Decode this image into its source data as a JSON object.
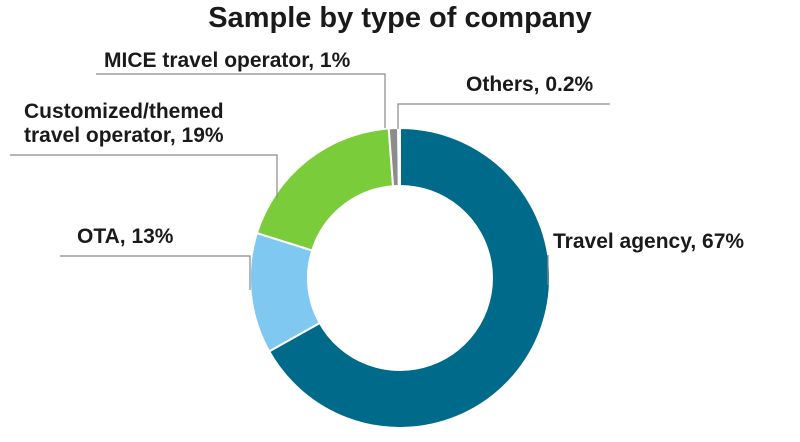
{
  "chart_data": {
    "type": "pie",
    "style": "donut",
    "title": "Sample by type of company",
    "slices": [
      {
        "label": "Travel agency",
        "value": 67,
        "value_label": "67%",
        "color": "#006a8a"
      },
      {
        "label": "OTA",
        "value": 13,
        "value_label": "13%",
        "color": "#7ec8f2"
      },
      {
        "label": "Customized/themed travel operator",
        "value": 19,
        "value_label": "19%",
        "color": "#7acc3a"
      },
      {
        "label": "MICE travel operator",
        "value": 1,
        "value_label": "1%",
        "color": "#8c8c8c"
      },
      {
        "label": "Others",
        "value": 0.2,
        "value_label": "0.2%",
        "color": "#bdbdbd"
      }
    ],
    "labels": {
      "travel_agency": "Travel agency, 67%",
      "ota": "OTA, 13%",
      "custom_line1": "Customized/themed",
      "custom_line2": "travel operator, 19%",
      "mice": "MICE travel operator, 1%",
      "others": "Others, 0.2%"
    }
  }
}
